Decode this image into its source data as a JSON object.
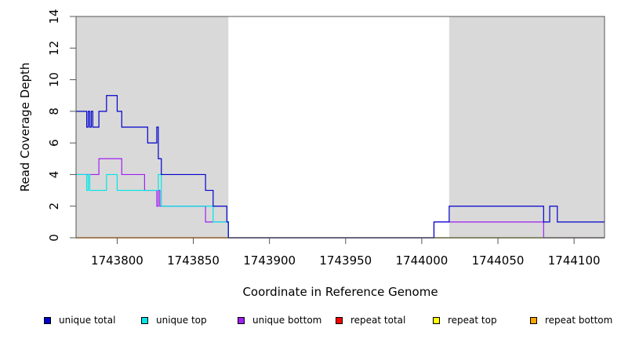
{
  "chart_data": {
    "type": "line",
    "title": "",
    "xlabel": "Coordinate in Reference Genome",
    "ylabel": "Read Coverage Depth",
    "xlim": [
      1743773,
      1744120
    ],
    "ylim": [
      0,
      14
    ],
    "x_ticks": [
      1743800,
      1743850,
      1743900,
      1743950,
      1744000,
      1744050,
      1744100
    ],
    "x_tick_labels": [
      "1743800",
      "1743850",
      "1743900",
      "1743950",
      "1744000",
      "1744050",
      "1744100"
    ],
    "y_ticks": [
      0,
      2,
      4,
      6,
      8,
      10,
      12,
      14
    ],
    "y_tick_labels": [
      "0",
      "2",
      "4",
      "6",
      "8",
      "10",
      "12",
      "14"
    ],
    "shaded_regions": [
      [
        1743773,
        1743873
      ],
      [
        1744018,
        1744120
      ]
    ],
    "shade_color": "#d9d9d9",
    "legend_position": "bottom",
    "series": [
      {
        "name": "unique total",
        "color": "#0000cc",
        "x": [
          1743773,
          1743780,
          1743781,
          1743782,
          1743783,
          1743784,
          1743788,
          1743793,
          1743800,
          1743803,
          1743820,
          1743826,
          1743827,
          1743828,
          1743829,
          1743858,
          1743863,
          1743872,
          1743873,
          1744008,
          1744018,
          1744080,
          1744084,
          1744089,
          1744120
        ],
        "y": [
          8,
          7,
          8,
          7,
          8,
          7,
          8,
          9,
          8,
          7,
          6,
          7,
          5,
          5,
          4,
          3,
          2,
          1,
          0,
          1,
          2,
          1,
          2,
          1,
          1
        ]
      },
      {
        "name": "unique top",
        "color": "#00e5e5",
        "x": [
          1743773,
          1743780,
          1743781,
          1743782,
          1743783,
          1743793,
          1743800,
          1743827,
          1743829,
          1743863,
          1743872,
          1743873,
          1744120
        ],
        "y": [
          4,
          3,
          4,
          3,
          3,
          4,
          3,
          4,
          2,
          1,
          1,
          0,
          0
        ]
      },
      {
        "name": "unique bottom",
        "color": "#a020f0",
        "x": [
          1743773,
          1743788,
          1743803,
          1743815,
          1743818,
          1743826,
          1743827,
          1743828,
          1743858,
          1743872,
          1743873,
          1744008,
          1744080,
          1744120
        ],
        "y": [
          4,
          5,
          4,
          4,
          3,
          2,
          3,
          2,
          1,
          1,
          0,
          1,
          0,
          0
        ]
      },
      {
        "name": "repeat total",
        "color": "#ff0000",
        "x": [
          1743773,
          1744120
        ],
        "y": [
          0,
          0
        ]
      },
      {
        "name": "repeat top",
        "color": "#ffff00",
        "x": [
          1743773,
          1744120
        ],
        "y": [
          0,
          0
        ]
      },
      {
        "name": "repeat bottom",
        "color": "#ffa500",
        "x": [
          1743773,
          1744120
        ],
        "y": [
          0,
          0
        ]
      }
    ]
  }
}
